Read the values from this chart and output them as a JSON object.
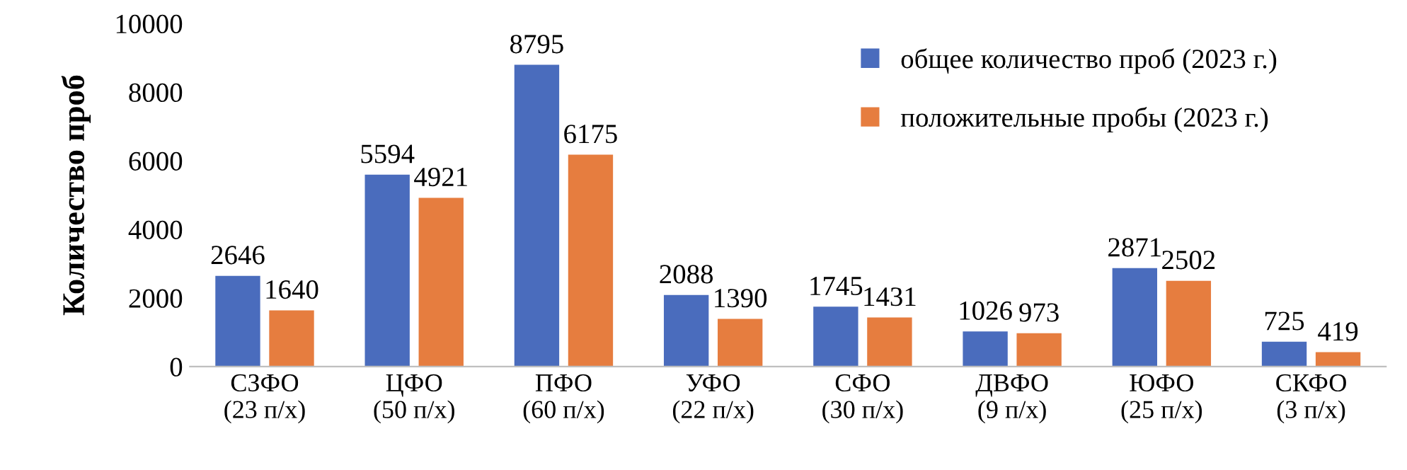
{
  "chart_data": {
    "type": "bar",
    "ylabel": "Количество проб",
    "categories": [
      "СЗФО\n(23 п/х)",
      "ЦФО\n(50 п/х)",
      "ПФО\n(60 п/х)",
      "УФО\n(22 п/х)",
      "СФО\n(30 п/х)",
      "ДВФО\n(9 п/х)",
      "ЮФО\n(25 п/х)",
      "СКФО\n(3 п/х)"
    ],
    "series": [
      {
        "name": "общее количество проб (2023 г.)",
        "color": "#4a6cbd",
        "values": [
          2646,
          5594,
          8795,
          2088,
          1745,
          1026,
          2871,
          725
        ]
      },
      {
        "name": "положительные пробы (2023 г.)",
        "color": "#e67d3f",
        "values": [
          1640,
          4921,
          6175,
          1390,
          1431,
          973,
          2502,
          419
        ]
      }
    ],
    "ylim": [
      0,
      10000
    ],
    "yticks": [
      0,
      2000,
      4000,
      6000,
      8000,
      10000
    ],
    "grid": false,
    "legend": "top right",
    "data_labels": true
  }
}
